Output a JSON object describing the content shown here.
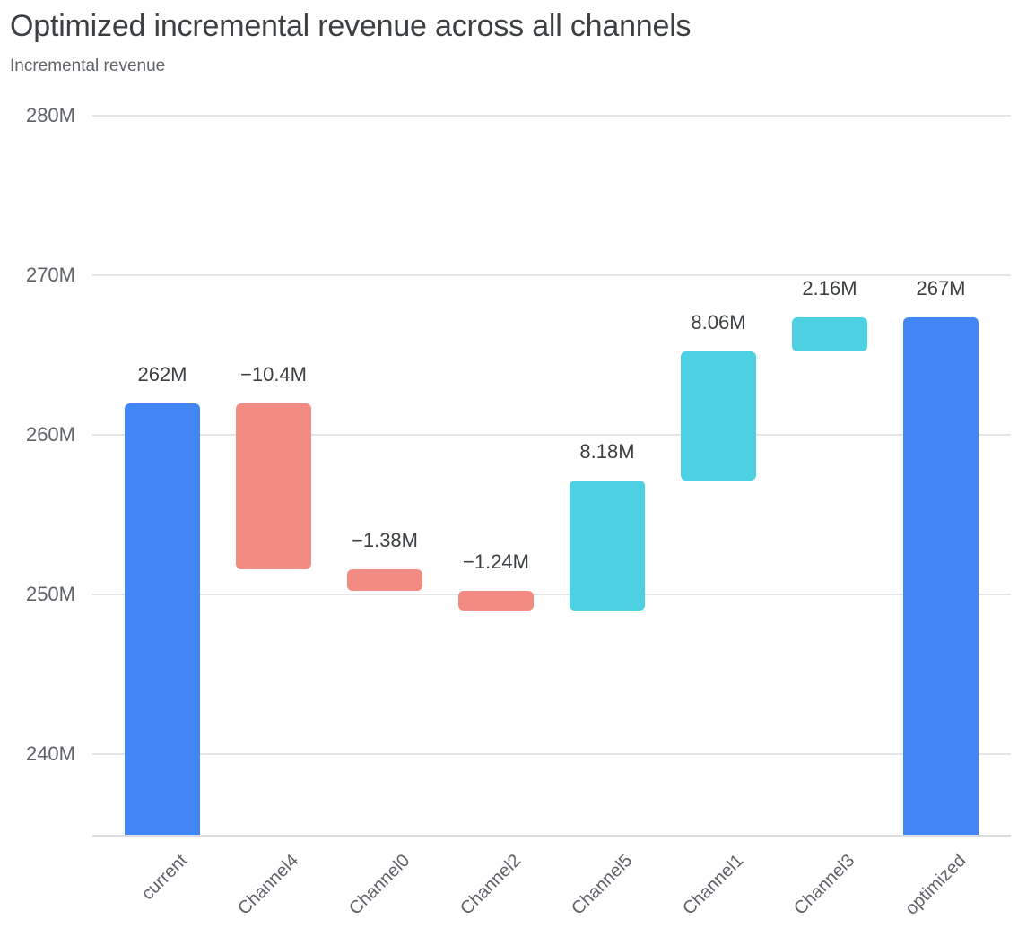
{
  "chart_data": {
    "type": "bar",
    "subtype": "waterfall",
    "title": "Optimized incremental revenue across all channels",
    "subtitle": "Incremental revenue",
    "xlabel": "",
    "ylabel": "Incremental revenue",
    "unit": "M",
    "categories": [
      "current",
      "Channel4",
      "Channel0",
      "Channel2",
      "Channel5",
      "Channel1",
      "Channel3",
      "optimized"
    ],
    "bars": [
      {
        "label": "current",
        "kind": "total",
        "value": 262,
        "display": "262M"
      },
      {
        "label": "Channel4",
        "kind": "delta",
        "value": -10.4,
        "display": "−10.4M"
      },
      {
        "label": "Channel0",
        "kind": "delta",
        "value": -1.38,
        "display": "−1.38M"
      },
      {
        "label": "Channel2",
        "kind": "delta",
        "value": -1.24,
        "display": "−1.24M"
      },
      {
        "label": "Channel5",
        "kind": "delta",
        "value": 8.18,
        "display": "8.18M"
      },
      {
        "label": "Channel1",
        "kind": "delta",
        "value": 8.06,
        "display": "8.06M"
      },
      {
        "label": "Channel3",
        "kind": "delta",
        "value": 2.16,
        "display": "2.16M"
      },
      {
        "label": "optimized",
        "kind": "total",
        "value": 267.38,
        "display": "267M"
      }
    ],
    "y_axis": {
      "ticks": [
        240,
        250,
        260,
        270,
        280
      ],
      "tick_labels": [
        "240M",
        "250M",
        "260M",
        "270M",
        "280M"
      ],
      "ylim": [
        234.9,
        281
      ],
      "grid": "on"
    },
    "legend": "none",
    "colors": {
      "total": "#4285f4",
      "increase": "#4dd0e1",
      "decrease": "#f28b82",
      "gridline": "#e6e6e6",
      "axis_line": "#dcdde0",
      "value_label": "#3c4043",
      "tick_label": "#5f6368"
    }
  }
}
